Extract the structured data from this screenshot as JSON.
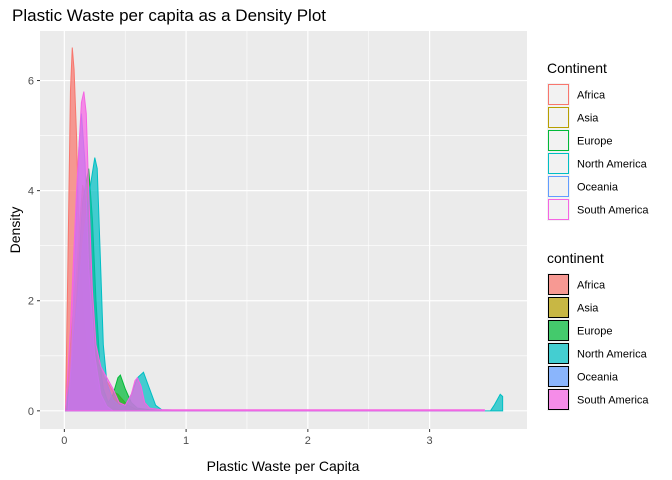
{
  "chart_data": {
    "type": "area",
    "title": "Plastic Waste per capita as a Density Plot",
    "xlabel": "Plastic Waste per Capita",
    "ylabel": "Density",
    "xlim": [
      -0.2,
      3.8
    ],
    "ylim": [
      -0.33,
      6.9
    ],
    "x_ticks": [
      0,
      1,
      2,
      3
    ],
    "y_ticks": [
      0,
      2,
      4,
      6
    ],
    "grid": true,
    "legend_position": "right",
    "legends": [
      {
        "title": "Continent",
        "style": "outline",
        "entries": [
          "Africa",
          "Asia",
          "Europe",
          "North America",
          "Oceania",
          "South America"
        ]
      },
      {
        "title": "continent",
        "style": "filled",
        "entries": [
          "Africa",
          "Asia",
          "Europe",
          "North America",
          "Oceania",
          "South America"
        ]
      }
    ],
    "series": [
      {
        "name": "Africa",
        "color": "#F8766D",
        "x": [
          0.01,
          0.03,
          0.05,
          0.065,
          0.08,
          0.1,
          0.12,
          0.15,
          0.18,
          0.22,
          0.26,
          0.3,
          0.35,
          0.4,
          0.45,
          0.5,
          0.6,
          0.8,
          1.2,
          2.0,
          3.0,
          3.45
        ],
        "y": [
          0.0,
          2.8,
          5.8,
          6.6,
          6.2,
          5.0,
          3.2,
          2.0,
          1.2,
          0.7,
          0.4,
          0.25,
          0.1,
          0.05,
          0.02,
          0.0,
          0.0,
          0.0,
          0.0,
          0.0,
          0.0,
          0.0
        ]
      },
      {
        "name": "Asia",
        "color": "#B79F00",
        "x": [
          0.01,
          0.05,
          0.1,
          0.13,
          0.15,
          0.17,
          0.2,
          0.23,
          0.27,
          0.3,
          0.33,
          0.36,
          0.4,
          0.44,
          0.48,
          0.52,
          0.6,
          0.7,
          0.8,
          1.2,
          2.0,
          3.0,
          3.45
        ],
        "y": [
          0.0,
          1.2,
          2.5,
          3.5,
          4.1,
          3.9,
          2.8,
          1.5,
          0.9,
          0.75,
          0.6,
          0.5,
          0.35,
          0.3,
          0.2,
          0.1,
          0.02,
          0.0,
          0.0,
          0.0,
          0.0,
          0.0,
          0.0
        ]
      },
      {
        "name": "Europe",
        "color": "#00BA38",
        "x": [
          0.01,
          0.05,
          0.1,
          0.15,
          0.2,
          0.23,
          0.26,
          0.29,
          0.32,
          0.36,
          0.4,
          0.44,
          0.46,
          0.5,
          0.55,
          0.6,
          0.7,
          0.8,
          1.2,
          2.0,
          3.0,
          3.45
        ],
        "y": [
          0.0,
          0.5,
          2.0,
          3.8,
          4.4,
          3.5,
          2.0,
          0.9,
          0.4,
          0.15,
          0.3,
          0.6,
          0.65,
          0.4,
          0.15,
          0.05,
          0.02,
          0.0,
          0.0,
          0.0,
          0.0,
          0.0
        ]
      },
      {
        "name": "North America",
        "color": "#00BFC4",
        "x": [
          0.01,
          0.05,
          0.1,
          0.15,
          0.2,
          0.25,
          0.27,
          0.3,
          0.32,
          0.35,
          0.4,
          0.45,
          0.5,
          0.55,
          0.6,
          0.65,
          0.7,
          0.75,
          0.8,
          1.2,
          2.0,
          3.0,
          3.5,
          3.53,
          3.56,
          3.58,
          3.6
        ],
        "y": [
          0.0,
          0.6,
          1.8,
          3.0,
          3.9,
          4.6,
          4.4,
          2.5,
          1.2,
          0.5,
          0.2,
          0.1,
          0.1,
          0.3,
          0.6,
          0.7,
          0.4,
          0.1,
          0.02,
          0.0,
          0.0,
          0.0,
          0.0,
          0.1,
          0.22,
          0.3,
          0.26
        ]
      },
      {
        "name": "Oceania",
        "color": "#619CFF",
        "x": [
          0.03,
          0.06,
          0.09,
          0.12,
          0.14,
          0.17,
          0.2,
          0.25,
          0.3,
          0.35,
          0.4,
          0.5,
          0.8,
          1.2,
          2.0,
          3.0,
          3.45
        ],
        "y": [
          0.0,
          1.0,
          3.0,
          4.8,
          5.4,
          4.5,
          2.6,
          1.0,
          0.3,
          0.08,
          0.0,
          0.0,
          0.0,
          0.0,
          0.0,
          0.0,
          0.0
        ]
      },
      {
        "name": "South America",
        "color": "#F564E3",
        "x": [
          0.01,
          0.05,
          0.1,
          0.14,
          0.16,
          0.18,
          0.2,
          0.23,
          0.26,
          0.3,
          0.35,
          0.4,
          0.45,
          0.5,
          0.55,
          0.58,
          0.6,
          0.63,
          0.66,
          0.7,
          0.8,
          1.2,
          2.0,
          3.0,
          3.45
        ],
        "y": [
          0.0,
          1.5,
          4.0,
          5.6,
          5.8,
          5.4,
          4.0,
          2.2,
          1.2,
          0.8,
          0.6,
          0.4,
          0.15,
          0.1,
          0.3,
          0.55,
          0.6,
          0.45,
          0.15,
          0.05,
          0.02,
          0.02,
          0.02,
          0.02,
          0.02
        ]
      }
    ]
  }
}
